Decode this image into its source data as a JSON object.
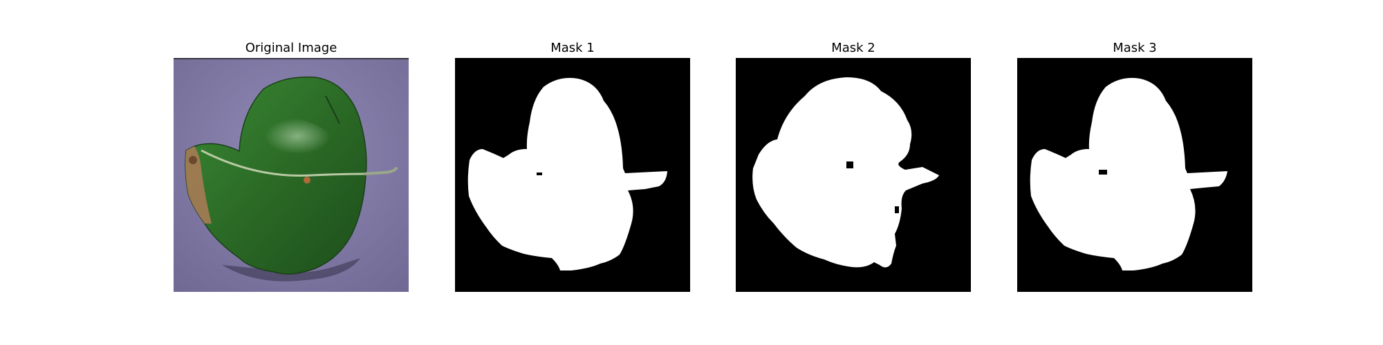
{
  "figure": {
    "panels": [
      {
        "title": "Original Image",
        "content": "leaf-photo",
        "background_color": "#8a80a8",
        "leaf_color": "#2f6e2a"
      },
      {
        "title": "Mask 1",
        "content": "binary-mask",
        "background_color": "#000000",
        "mask_color": "#ffffff"
      },
      {
        "title": "Mask 2",
        "content": "binary-mask",
        "background_color": "#000000",
        "mask_color": "#ffffff"
      },
      {
        "title": "Mask 3",
        "content": "binary-mask",
        "background_color": "#000000",
        "mask_color": "#ffffff"
      }
    ]
  }
}
